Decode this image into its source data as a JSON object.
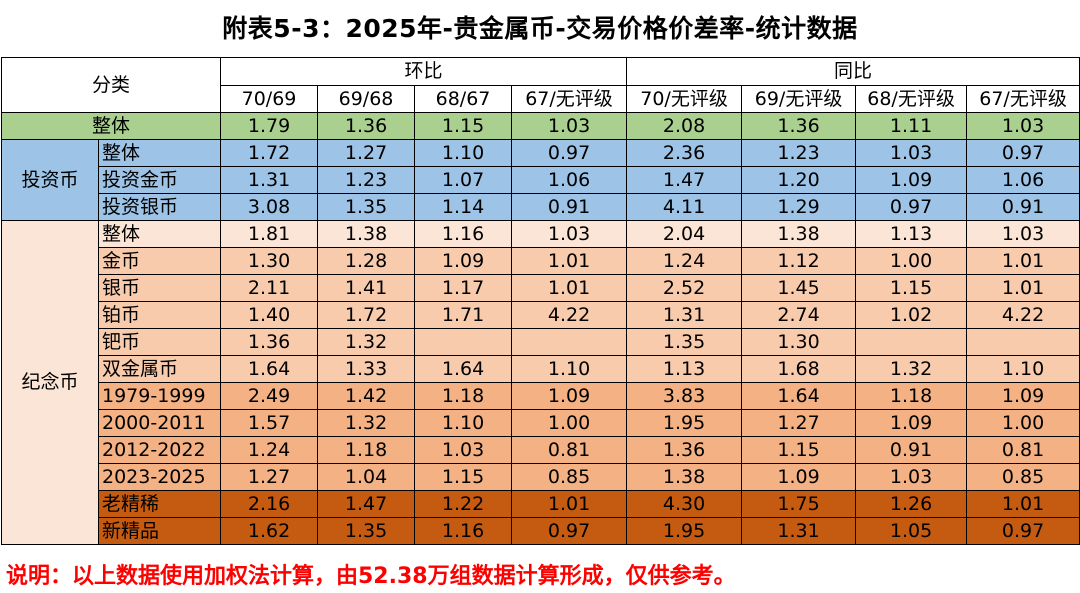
{
  "title": "附表5-3：2025年-贵金属币-交易价格价差率-统计数据",
  "header": {
    "category": "分类",
    "group_hb": "环比",
    "group_tb": "同比",
    "columns": [
      "70/69",
      "69/68",
      "68/67",
      "67/无评级",
      "70/无评级",
      "69/无评级",
      "68/无评级",
      "67/无评级"
    ]
  },
  "groups": {
    "investment": "投资币",
    "commemorative": "纪念币"
  },
  "rows": [
    {
      "name": "整体",
      "values": [
        "1.79",
        "1.36",
        "1.15",
        "1.03",
        "2.08",
        "1.36",
        "1.11",
        "1.03"
      ]
    },
    {
      "name": "整体",
      "values": [
        "1.72",
        "1.27",
        "1.10",
        "0.97",
        "2.36",
        "1.23",
        "1.03",
        "0.97"
      ]
    },
    {
      "name": "投资金币",
      "values": [
        "1.31",
        "1.23",
        "1.07",
        "1.06",
        "1.47",
        "1.20",
        "1.09",
        "1.06"
      ]
    },
    {
      "name": "投资银币",
      "values": [
        "3.08",
        "1.35",
        "1.14",
        "0.91",
        "4.11",
        "1.29",
        "0.97",
        "0.91"
      ]
    },
    {
      "name": "整体",
      "values": [
        "1.81",
        "1.38",
        "1.16",
        "1.03",
        "2.04",
        "1.38",
        "1.13",
        "1.03"
      ]
    },
    {
      "name": "金币",
      "values": [
        "1.30",
        "1.28",
        "1.09",
        "1.01",
        "1.24",
        "1.12",
        "1.00",
        "1.01"
      ]
    },
    {
      "name": "银币",
      "values": [
        "2.11",
        "1.41",
        "1.17",
        "1.01",
        "2.52",
        "1.45",
        "1.15",
        "1.01"
      ]
    },
    {
      "name": "铂币",
      "values": [
        "1.40",
        "1.72",
        "1.71",
        "4.22",
        "1.31",
        "2.74",
        "1.02",
        "4.22"
      ]
    },
    {
      "name": "钯币",
      "values": [
        "1.36",
        "1.32",
        "",
        "",
        "1.35",
        "1.30",
        "",
        ""
      ]
    },
    {
      "name": "双金属币",
      "values": [
        "1.64",
        "1.33",
        "1.64",
        "1.10",
        "1.13",
        "1.68",
        "1.32",
        "1.10"
      ]
    },
    {
      "name": "1979-1999",
      "values": [
        "2.49",
        "1.42",
        "1.18",
        "1.09",
        "3.83",
        "1.64",
        "1.18",
        "1.09"
      ]
    },
    {
      "name": "2000-2011",
      "values": [
        "1.57",
        "1.32",
        "1.10",
        "1.00",
        "1.95",
        "1.27",
        "1.09",
        "1.00"
      ]
    },
    {
      "name": "2012-2022",
      "values": [
        "1.24",
        "1.18",
        "1.03",
        "0.81",
        "1.36",
        "1.15",
        "0.91",
        "0.81"
      ]
    },
    {
      "name": "2023-2025",
      "values": [
        "1.27",
        "1.04",
        "1.15",
        "0.85",
        "1.38",
        "1.09",
        "1.03",
        "0.85"
      ]
    },
    {
      "name": "老精稀",
      "values": [
        "2.16",
        "1.47",
        "1.22",
        "1.01",
        "4.30",
        "1.75",
        "1.26",
        "1.01"
      ]
    },
    {
      "name": "新精品",
      "values": [
        "1.62",
        "1.35",
        "1.16",
        "0.97",
        "1.95",
        "1.31",
        "1.05",
        "0.97"
      ]
    }
  ],
  "note": "说明：以上数据使用加权法计算，由52.38万组数据计算形成，仅供参考。",
  "colors": {
    "overall_row": "#a9d08e",
    "investment_rows": "#9dc3e6",
    "commemorative_light": "#fbe5d6",
    "commemorative_mid": "#f8cbad",
    "commemorative_deep": "#f4b183",
    "commemorative_dark": "#c55a11",
    "note_text": "#ff0000"
  }
}
